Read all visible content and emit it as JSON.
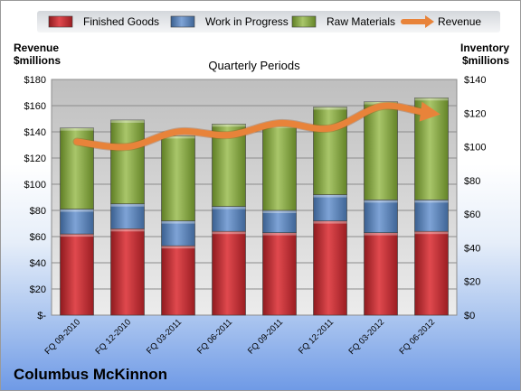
{
  "chart_data": {
    "type": "bar",
    "stacked": true,
    "title": "Quarterly Periods",
    "categories": [
      "FQ 09-2010",
      "FQ 12-2010",
      "FQ 03-2011",
      "FQ 06-2011",
      "FQ 09-2011",
      "FQ 12-2011",
      "FQ 03-2012",
      "FQ 06-2012"
    ],
    "series": [
      {
        "name": "Finished Goods",
        "axis": "left",
        "color": "#c0272d",
        "values": [
          62,
          66,
          53,
          64,
          63,
          72,
          63,
          64
        ]
      },
      {
        "name": "Work in Progress",
        "axis": "left",
        "color": "#4f81bd",
        "values": [
          19,
          19,
          19,
          19,
          17,
          20,
          25,
          24
        ]
      },
      {
        "name": "Raw Materials",
        "axis": "left",
        "color": "#8eb044",
        "values": [
          62,
          64,
          65,
          63,
          65,
          67,
          75,
          78
        ]
      },
      {
        "name": "Revenue",
        "type": "line",
        "axis": "right",
        "color": "#e8833a",
        "values": [
          103,
          100,
          109,
          107,
          114,
          111,
          124,
          120
        ]
      }
    ],
    "y_left": {
      "label_line1": "Revenue",
      "label_line2": "$millions",
      "min": 0,
      "max": 180,
      "step": 20,
      "tick_labels": [
        "$-",
        "$20",
        "$40",
        "$60",
        "$80",
        "$100",
        "$120",
        "$140",
        "$160",
        "$180"
      ]
    },
    "y_right": {
      "label_line1": "Inventory",
      "label_line2": "$millions",
      "min": 0,
      "max": 140,
      "step": 20,
      "tick_labels": [
        "$0",
        "$20",
        "$40",
        "$60",
        "$80",
        "$100",
        "$120",
        "$140"
      ]
    },
    "legend_position": "top",
    "grid": true
  },
  "brand": "Columbus McKinnon"
}
